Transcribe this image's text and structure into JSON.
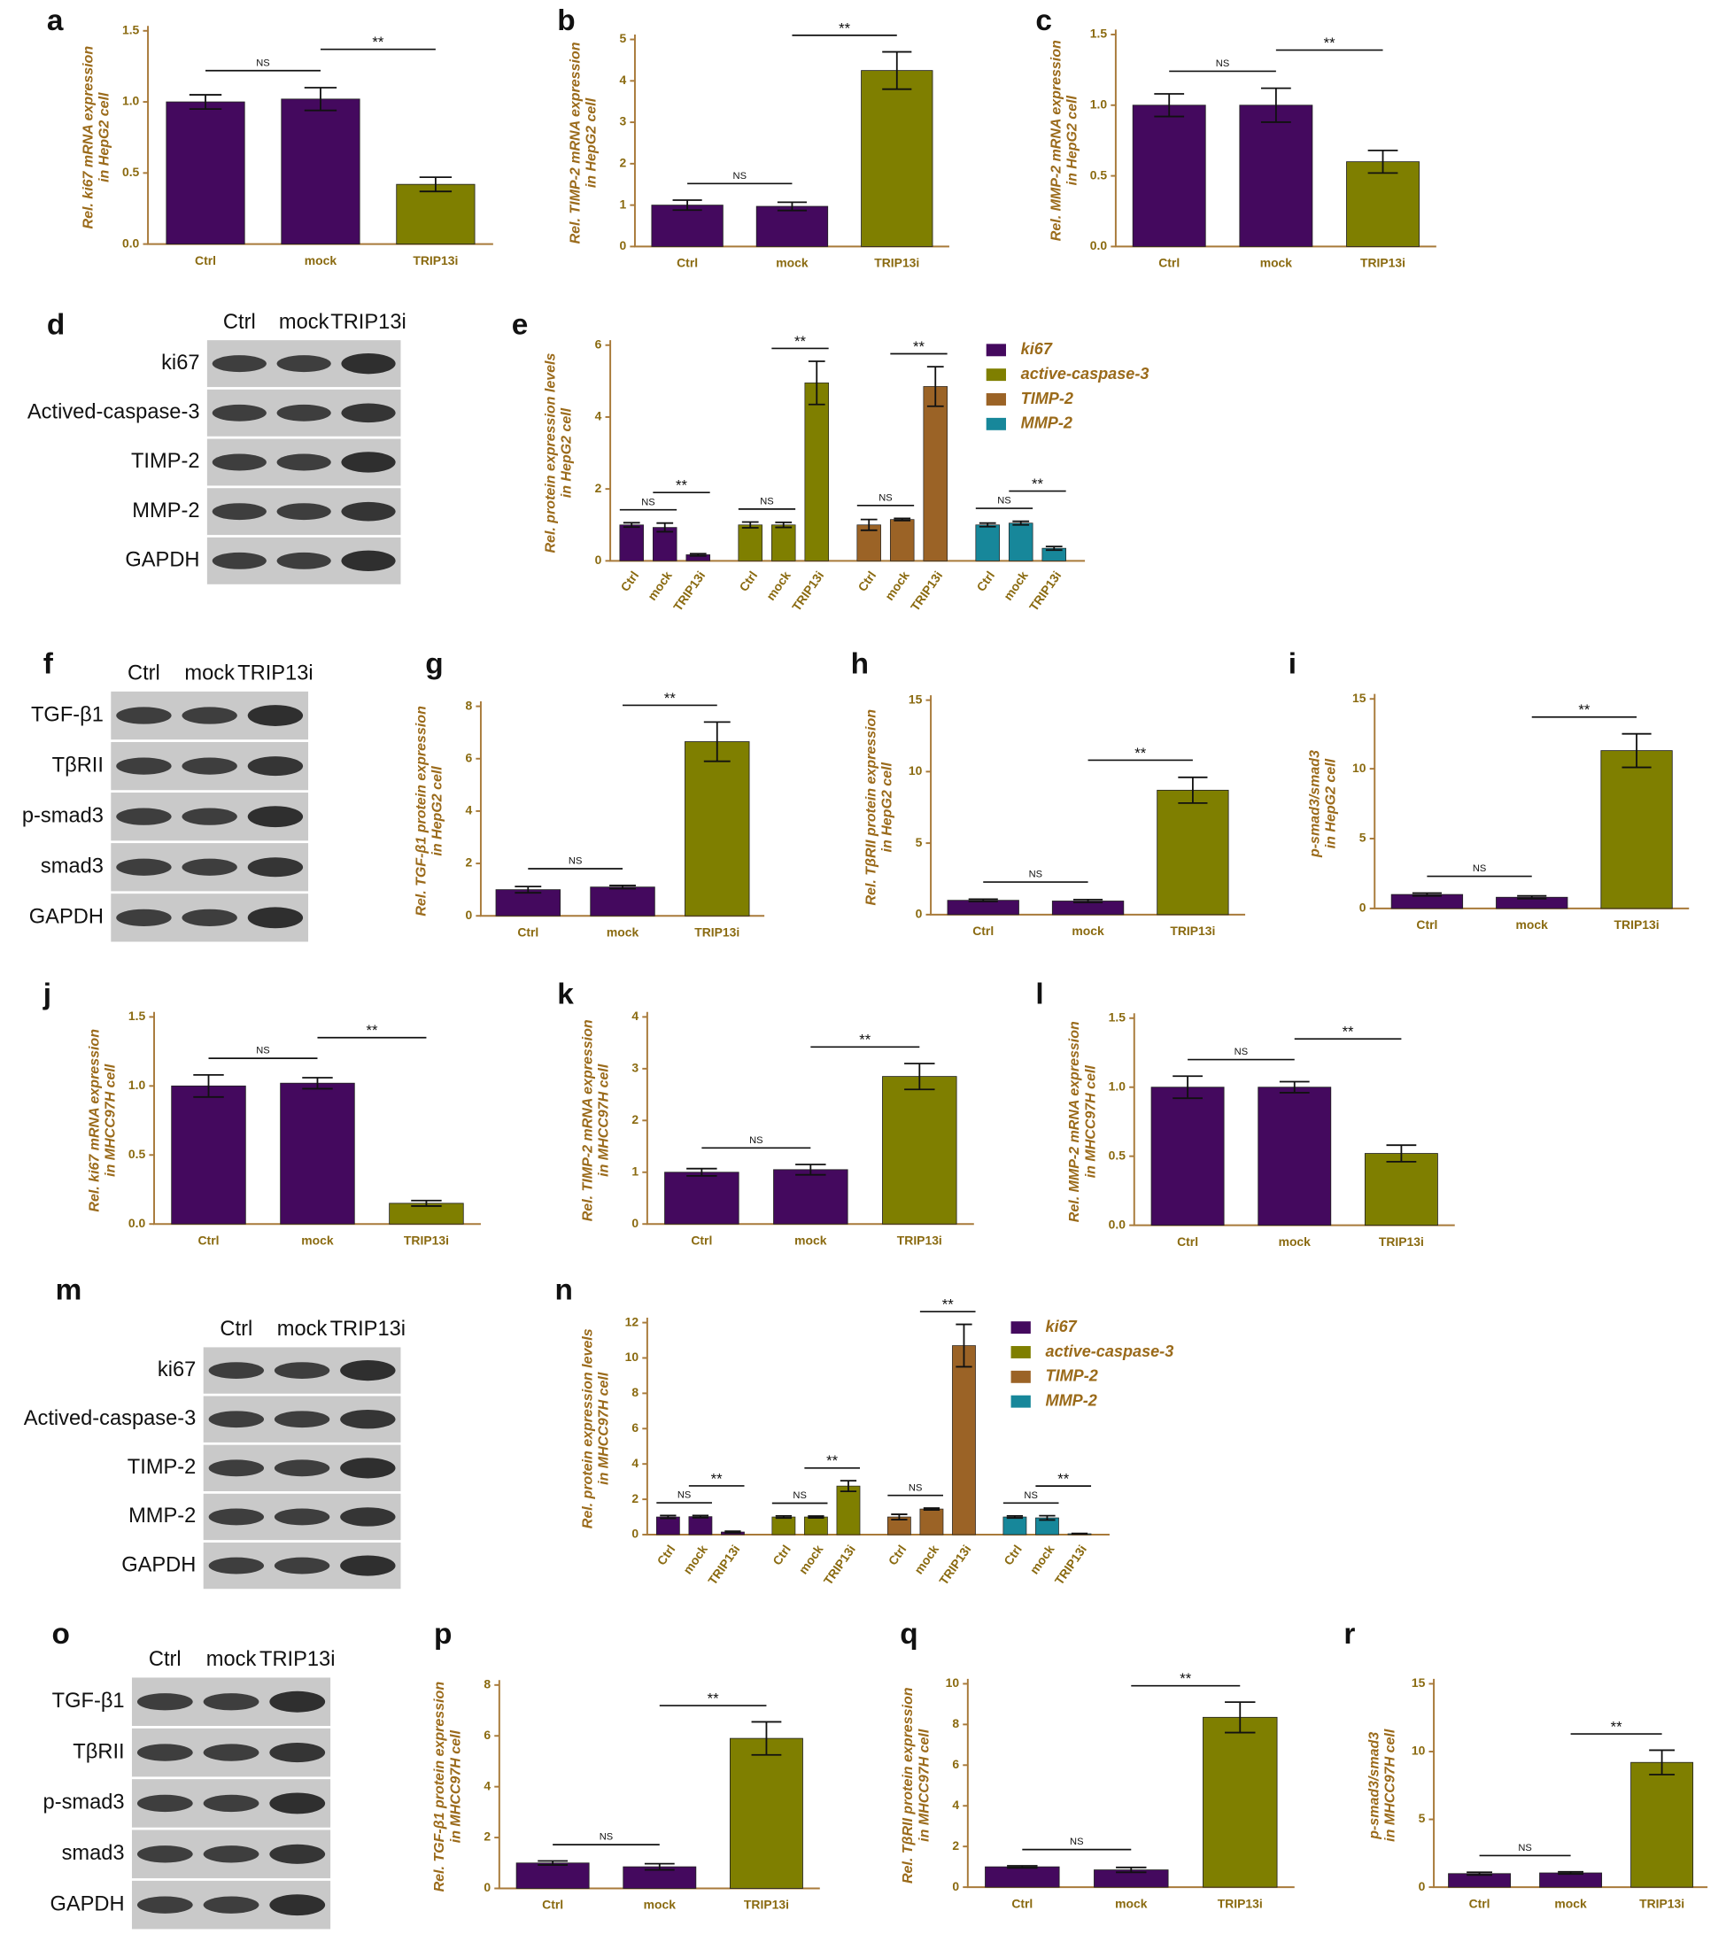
{
  "chart_data": [
    {
      "panel_label": "a",
      "type": "bar",
      "ylabel": [
        "Rel. ki67 mRNA expression",
        "in HepG2 cell"
      ],
      "categories": [
        "Ctrl",
        "mock",
        "TRIP13i"
      ],
      "values": [
        1.0,
        1.02,
        0.42
      ],
      "errors": [
        0.05,
        0.08,
        0.05
      ],
      "colors": [
        "#44095e",
        "#44095e",
        "#7f7f00"
      ],
      "ylim": [
        0,
        1.5
      ],
      "yticks": [
        {
          "value": 0,
          "label": "0.0"
        },
        0.5,
        {
          "value": 1,
          "label": "1.0"
        },
        1.5
      ],
      "annotations": [
        {
          "text": "NS",
          "from": "Ctrl",
          "to": "mock"
        },
        {
          "text": "**",
          "from": "mock",
          "to": "TRIP13i"
        }
      ]
    },
    {
      "panel_label": "b",
      "type": "bar",
      "ylabel": [
        "Rel. TIMP-2 mRNA expression",
        "in HepG2 cell"
      ],
      "categories": [
        "Ctrl",
        "mock",
        "TRIP13i"
      ],
      "values": [
        1.0,
        0.97,
        4.25
      ],
      "errors": [
        0.12,
        0.1,
        0.45
      ],
      "colors": [
        "#44095e",
        "#44095e",
        "#7f7f00"
      ],
      "ylim": [
        0,
        5
      ],
      "yticks": [
        0,
        1,
        2,
        3,
        4,
        5
      ],
      "annotations": [
        {
          "text": "NS",
          "from": "Ctrl",
          "to": "mock"
        },
        {
          "text": "**",
          "from": "mock",
          "to": "TRIP13i"
        }
      ]
    },
    {
      "panel_label": "c",
      "type": "bar",
      "ylabel": [
        "Rel. MMP-2 mRNA expression",
        "in HepG2 cell"
      ],
      "categories": [
        "Ctrl",
        "mock",
        "TRIP13i"
      ],
      "values": [
        1.0,
        1.0,
        0.6
      ],
      "errors": [
        0.08,
        0.12,
        0.08
      ],
      "colors": [
        "#44095e",
        "#44095e",
        "#7f7f00"
      ],
      "ylim": [
        0,
        1.5
      ],
      "yticks": [
        {
          "value": 0,
          "label": "0.0"
        },
        0.5,
        {
          "value": 1,
          "label": "1.0"
        },
        1.5
      ],
      "annotations": [
        {
          "text": "NS",
          "from": "Ctrl",
          "to": "mock"
        },
        {
          "text": "**",
          "from": "mock",
          "to": "TRIP13i"
        }
      ]
    },
    {
      "panel_label": "e",
      "type": "grouped_bar",
      "ylabel": [
        "Rel. protein expression levels",
        "in HepG2 cell"
      ],
      "categories": [
        "Ctrl",
        "mock",
        "TRIP13i"
      ],
      "ylim": [
        0,
        6
      ],
      "yticks": [
        0,
        2,
        4,
        6
      ],
      "legend": "right",
      "series": [
        {
          "name": "ki67",
          "color": "#44095e",
          "values": [
            1.0,
            0.93,
            0.17
          ],
          "errors": [
            0.06,
            0.12,
            0.03
          ]
        },
        {
          "name": "active-caspase-3",
          "color": "#7f7f00",
          "values": [
            1.0,
            1.0,
            4.95
          ],
          "errors": [
            0.08,
            0.07,
            0.6
          ]
        },
        {
          "name": "TIMP-2",
          "color": "#9b6326",
          "values": [
            1.0,
            1.15,
            4.85
          ],
          "errors": [
            0.15,
            0.03,
            0.55
          ]
        },
        {
          "name": "MMP-2",
          "color": "#17879a",
          "values": [
            1.0,
            1.05,
            0.35
          ],
          "errors": [
            0.05,
            0.05,
            0.05
          ]
        }
      ],
      "annotations": [
        {
          "text": "NS",
          "series": "ki67",
          "from": "Ctrl",
          "to": "mock"
        },
        {
          "text": "**",
          "series": "ki67",
          "from": "mock",
          "to": "TRIP13i"
        },
        {
          "text": "NS",
          "series": "active-caspase-3",
          "from": "Ctrl",
          "to": "mock"
        },
        {
          "text": "**",
          "series": "active-caspase-3",
          "from": "mock",
          "to": "TRIP13i"
        },
        {
          "text": "NS",
          "series": "TIMP-2",
          "from": "Ctrl",
          "to": "mock"
        },
        {
          "text": "**",
          "series": "TIMP-2",
          "from": "mock",
          "to": "TRIP13i"
        },
        {
          "text": "NS",
          "series": "MMP-2",
          "from": "Ctrl",
          "to": "mock"
        },
        {
          "text": "**",
          "series": "MMP-2",
          "from": "mock",
          "to": "TRIP13i"
        }
      ]
    },
    {
      "panel_label": "g",
      "type": "bar",
      "ylabel": [
        "Rel. TGF-β1 protein expression",
        "in HepG2 cell"
      ],
      "categories": [
        "Ctrl",
        "mock",
        "TRIP13i"
      ],
      "values": [
        1.0,
        1.1,
        6.65
      ],
      "errors": [
        0.12,
        0.06,
        0.75
      ],
      "colors": [
        "#44095e",
        "#44095e",
        "#7f7f00"
      ],
      "ylim": [
        0,
        8
      ],
      "yticks": [
        0,
        2,
        4,
        6,
        8
      ],
      "annotations": [
        {
          "text": "NS",
          "from": "Ctrl",
          "to": "mock"
        },
        {
          "text": "**",
          "from": "mock",
          "to": "TRIP13i"
        }
      ]
    },
    {
      "panel_label": "h",
      "type": "bar",
      "ylabel": [
        "Rel. TβRII protein expression",
        "in HepG2 cell"
      ],
      "categories": [
        "Ctrl",
        "mock",
        "TRIP13i"
      ],
      "values": [
        1.0,
        0.95,
        8.7
      ],
      "errors": [
        0.08,
        0.1,
        0.9
      ],
      "colors": [
        "#44095e",
        "#44095e",
        "#7f7f00"
      ],
      "ylim": [
        0,
        15
      ],
      "yticks": [
        0,
        5,
        10,
        15
      ],
      "annotations": [
        {
          "text": "NS",
          "from": "Ctrl",
          "to": "mock"
        },
        {
          "text": "**",
          "from": "mock",
          "to": "TRIP13i"
        }
      ]
    },
    {
      "panel_label": "i",
      "type": "bar",
      "ylabel": [
        "p-smad3/smad3",
        "in HepG2 cell"
      ],
      "categories": [
        "Ctrl",
        "mock",
        "TRIP13i"
      ],
      "values": [
        1.0,
        0.8,
        11.3
      ],
      "errors": [
        0.1,
        0.1,
        1.2
      ],
      "colors": [
        "#44095e",
        "#44095e",
        "#7f7f00"
      ],
      "ylim": [
        0,
        15
      ],
      "yticks": [
        0,
        5,
        10,
        15
      ],
      "annotations": [
        {
          "text": "NS",
          "from": "Ctrl",
          "to": "mock"
        },
        {
          "text": "**",
          "from": "mock",
          "to": "TRIP13i"
        }
      ]
    },
    {
      "panel_label": "j",
      "type": "bar",
      "ylabel": [
        "Rel. ki67 mRNA expression",
        "in MHCC97H cell"
      ],
      "categories": [
        "Ctrl",
        "mock",
        "TRIP13i"
      ],
      "values": [
        1.0,
        1.02,
        0.15
      ],
      "errors": [
        0.08,
        0.04,
        0.02
      ],
      "colors": [
        "#44095e",
        "#44095e",
        "#7f7f00"
      ],
      "ylim": [
        0,
        1.5
      ],
      "yticks": [
        {
          "value": 0,
          "label": "0.0"
        },
        0.5,
        {
          "value": 1,
          "label": "1.0"
        },
        1.5
      ],
      "annotations": [
        {
          "text": "NS",
          "from": "Ctrl",
          "to": "mock"
        },
        {
          "text": "**",
          "from": "mock",
          "to": "TRIP13i"
        }
      ]
    },
    {
      "panel_label": "k",
      "type": "bar",
      "ylabel": [
        "Rel. TIMP-2 mRNA expression",
        "in MHCC97H cell"
      ],
      "categories": [
        "Ctrl",
        "mock",
        "TRIP13i"
      ],
      "values": [
        1.0,
        1.05,
        2.85
      ],
      "errors": [
        0.07,
        0.1,
        0.25
      ],
      "colors": [
        "#44095e",
        "#44095e",
        "#7f7f00"
      ],
      "ylim": [
        0,
        4
      ],
      "yticks": [
        0,
        1,
        2,
        3,
        4
      ],
      "annotations": [
        {
          "text": "NS",
          "from": "Ctrl",
          "to": "mock"
        },
        {
          "text": "**",
          "from": "mock",
          "to": "TRIP13i"
        }
      ]
    },
    {
      "panel_label": "l",
      "type": "bar",
      "ylabel": [
        "Rel. MMP-2 mRNA expression",
        "in MHCC97H cell"
      ],
      "categories": [
        "Ctrl",
        "mock",
        "TRIP13i"
      ],
      "values": [
        1.0,
        1.0,
        0.52
      ],
      "errors": [
        0.08,
        0.04,
        0.06
      ],
      "colors": [
        "#44095e",
        "#44095e",
        "#7f7f00"
      ],
      "ylim": [
        0,
        1.5
      ],
      "yticks": [
        {
          "value": 0,
          "label": "0.0"
        },
        0.5,
        {
          "value": 1,
          "label": "1.0"
        },
        1.5
      ],
      "annotations": [
        {
          "text": "NS",
          "from": "Ctrl",
          "to": "mock"
        },
        {
          "text": "**",
          "from": "mock",
          "to": "TRIP13i"
        }
      ]
    },
    {
      "panel_label": "n",
      "type": "grouped_bar",
      "ylabel": [
        "Rel. protein expression levels",
        "in MHCC97H cell"
      ],
      "categories": [
        "Ctrl",
        "mock",
        "TRIP13i"
      ],
      "ylim": [
        0,
        12
      ],
      "yticks": [
        0,
        2,
        4,
        6,
        8,
        10,
        12
      ],
      "legend": "right",
      "series": [
        {
          "name": "ki67",
          "color": "#44095e",
          "values": [
            1.0,
            1.02,
            0.15
          ],
          "errors": [
            0.08,
            0.06,
            0.04
          ]
        },
        {
          "name": "active-caspase-3",
          "color": "#7f7f00",
          "values": [
            1.0,
            1.0,
            2.75
          ],
          "errors": [
            0.06,
            0.05,
            0.3
          ]
        },
        {
          "name": "TIMP-2",
          "color": "#9b6326",
          "values": [
            1.0,
            1.45,
            10.7
          ],
          "errors": [
            0.15,
            0.05,
            1.2
          ]
        },
        {
          "name": "MMP-2",
          "color": "#17879a",
          "values": [
            1.0,
            0.95,
            0.05
          ],
          "errors": [
            0.06,
            0.12,
            0.02
          ]
        }
      ],
      "annotations": [
        {
          "text": "NS",
          "series": "ki67",
          "from": "Ctrl",
          "to": "mock"
        },
        {
          "text": "**",
          "series": "ki67",
          "from": "mock",
          "to": "TRIP13i"
        },
        {
          "text": "NS",
          "series": "active-caspase-3",
          "from": "Ctrl",
          "to": "mock"
        },
        {
          "text": "**",
          "series": "active-caspase-3",
          "from": "mock",
          "to": "TRIP13i"
        },
        {
          "text": "NS",
          "series": "TIMP-2",
          "from": "Ctrl",
          "to": "mock"
        },
        {
          "text": "**",
          "series": "TIMP-2",
          "from": "mock",
          "to": "TRIP13i"
        },
        {
          "text": "NS",
          "series": "MMP-2",
          "from": "Ctrl",
          "to": "mock"
        },
        {
          "text": "**",
          "series": "MMP-2",
          "from": "mock",
          "to": "TRIP13i"
        }
      ]
    },
    {
      "panel_label": "p",
      "type": "bar",
      "ylabel": [
        "Rel. TGF-β1 protein expression",
        "in MHCC97H cell"
      ],
      "categories": [
        "Ctrl",
        "mock",
        "TRIP13i"
      ],
      "values": [
        1.0,
        0.85,
        5.9
      ],
      "errors": [
        0.08,
        0.12,
        0.65
      ],
      "colors": [
        "#44095e",
        "#44095e",
        "#7f7f00"
      ],
      "ylim": [
        0,
        8
      ],
      "yticks": [
        0,
        2,
        4,
        6,
        8
      ],
      "annotations": [
        {
          "text": "NS",
          "from": "Ctrl",
          "to": "mock"
        },
        {
          "text": "**",
          "from": "mock",
          "to": "TRIP13i"
        }
      ]
    },
    {
      "panel_label": "q",
      "type": "bar",
      "ylabel": [
        "Rel. TβRII protein expression",
        "in MHCC97H cell"
      ],
      "categories": [
        "Ctrl",
        "mock",
        "TRIP13i"
      ],
      "values": [
        1.0,
        0.85,
        8.35
      ],
      "errors": [
        0.05,
        0.12,
        0.75
      ],
      "colors": [
        "#44095e",
        "#44095e",
        "#7f7f00"
      ],
      "ylim": [
        0,
        10
      ],
      "yticks": [
        0,
        2,
        4,
        6,
        8,
        10
      ],
      "annotations": [
        {
          "text": "NS",
          "from": "Ctrl",
          "to": "mock"
        },
        {
          "text": "**",
          "from": "mock",
          "to": "TRIP13i"
        }
      ]
    },
    {
      "panel_label": "r",
      "type": "bar",
      "ylabel": [
        "p-smad3/smad3",
        "in MHCC97H cell"
      ],
      "categories": [
        "Ctrl",
        "mock",
        "TRIP13i"
      ],
      "values": [
        1.0,
        1.05,
        9.2
      ],
      "errors": [
        0.1,
        0.08,
        0.9
      ],
      "colors": [
        "#44095e",
        "#44095e",
        "#7f7f00"
      ],
      "ylim": [
        0,
        15
      ],
      "yticks": [
        0,
        5,
        10,
        15
      ],
      "annotations": [
        {
          "text": "NS",
          "from": "Ctrl",
          "to": "mock"
        },
        {
          "text": "**",
          "from": "mock",
          "to": "TRIP13i"
        }
      ]
    }
  ],
  "blots": [
    {
      "panel_label": "d",
      "columns": [
        "Ctrl",
        "mock",
        "TRIP13i"
      ],
      "rows": [
        "ki67",
        "Actived-caspase-3",
        "TIMP-2",
        "MMP-2",
        "GAPDH"
      ]
    },
    {
      "panel_label": "f",
      "columns": [
        "Ctrl",
        "mock",
        "TRIP13i"
      ],
      "rows": [
        "TGF-β1",
        "TβRII",
        "p-smad3",
        "smad3",
        "GAPDH"
      ]
    },
    {
      "panel_label": "m",
      "columns": [
        "Ctrl",
        "mock",
        "TRIP13i"
      ],
      "rows": [
        "ki67",
        "Actived-caspase-3",
        "TIMP-2",
        "MMP-2",
        "GAPDH"
      ]
    },
    {
      "panel_label": "o",
      "columns": [
        "Ctrl",
        "mock",
        "TRIP13i"
      ],
      "rows": [
        "TGF-β1",
        "TβRII",
        "p-smad3",
        "smad3",
        "GAPDH"
      ]
    }
  ]
}
